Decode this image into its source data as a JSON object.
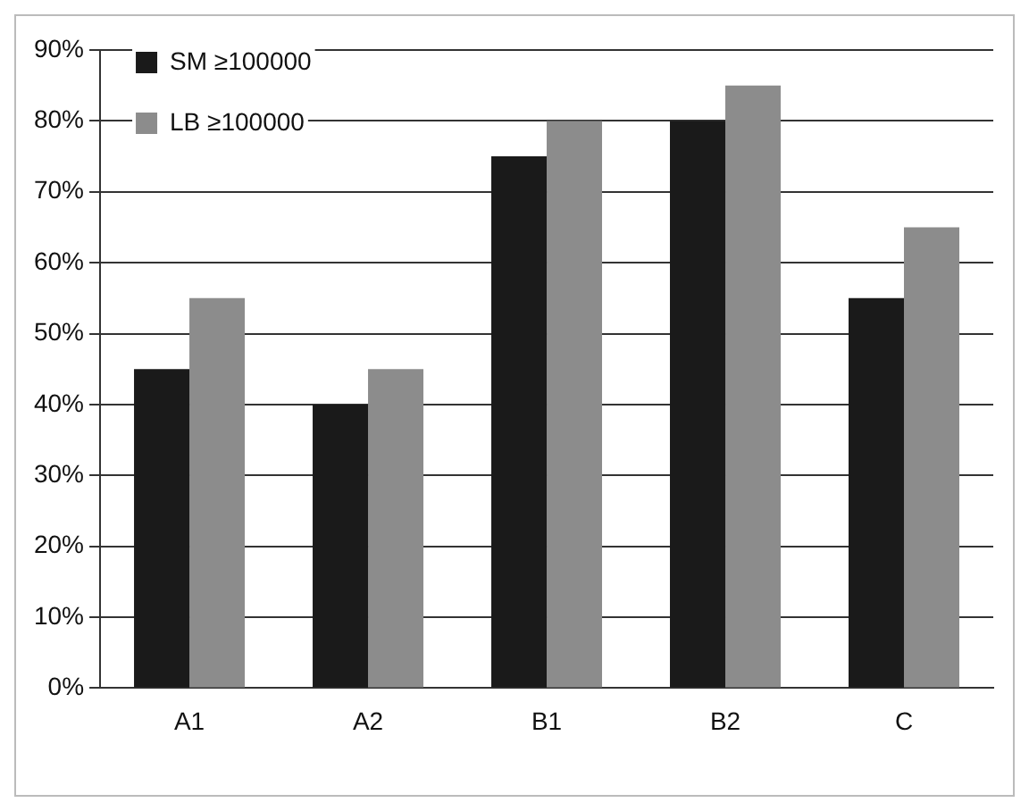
{
  "chart_data": {
    "type": "bar",
    "categories": [
      "A1",
      "A2",
      "B1",
      "B2",
      "C"
    ],
    "series": [
      {
        "name": "SM ≥100000",
        "color": "#1a1a1a",
        "values": [
          45,
          40,
          75,
          80,
          55
        ]
      },
      {
        "name": "LB ≥100000",
        "color": "#8c8c8c",
        "values": [
          55,
          45,
          80,
          85,
          65
        ]
      }
    ],
    "ylim": [
      0,
      90
    ],
    "yticks": [
      {
        "value": 0,
        "label": "0%"
      },
      {
        "value": 10,
        "label": "10%"
      },
      {
        "value": 20,
        "label": "20%"
      },
      {
        "value": 30,
        "label": "30%"
      },
      {
        "value": 40,
        "label": "40%"
      },
      {
        "value": 50,
        "label": "50%"
      },
      {
        "value": 60,
        "label": "60%"
      },
      {
        "value": 70,
        "label": "70%"
      },
      {
        "value": 80,
        "label": "80%"
      },
      {
        "value": 90,
        "label": "90%"
      }
    ],
    "grid": "y",
    "legend": "top left"
  }
}
